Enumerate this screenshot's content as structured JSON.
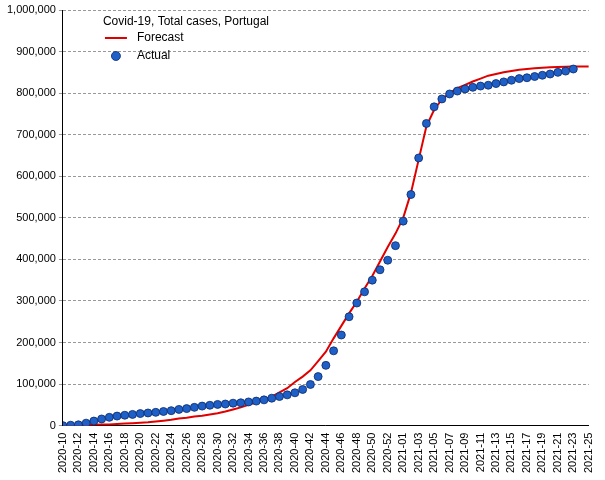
{
  "chart_data": {
    "type": "line",
    "title": "Covid-19, Total cases, Portugal",
    "categories": [
      "2020-10",
      null,
      "2020-12",
      null,
      "2020-14",
      null,
      "2020-16",
      null,
      "2020-18",
      null,
      "2020-20",
      null,
      "2020-22",
      null,
      "2020-24",
      null,
      "2020-26",
      null,
      "2020-28",
      null,
      "2020-30",
      null,
      "2020-32",
      null,
      "2020-34",
      null,
      "2020-36",
      null,
      "2020-38",
      null,
      "2020-40",
      null,
      "2020-42",
      null,
      "2020-44",
      null,
      "2020-46",
      null,
      "2020-48",
      null,
      "2020-50",
      null,
      "2020-52",
      null,
      "2021-01",
      null,
      "2021-03",
      null,
      "2021-05",
      null,
      "2021-07",
      null,
      "2021-09",
      null,
      "2021-11",
      null,
      "2021-13",
      null,
      "2021-15",
      null,
      "2021-17",
      null,
      "2021-19",
      null,
      "2021-21",
      null,
      "2021-23",
      null,
      "2021-25"
    ],
    "series": [
      {
        "name": "Forecast",
        "type": "line",
        "color": "#e00000",
        "marker": "none",
        "line_style": "solid",
        "values": [
          0,
          500,
          1000,
          1500,
          2000,
          2500,
          3000,
          4000,
          5000,
          6000,
          7000,
          8000,
          10000,
          12000,
          14000,
          17000,
          19000,
          22000,
          24000,
          27000,
          30000,
          34000,
          39000,
          44000,
          50000,
          56000,
          62000,
          70000,
          80000,
          90000,
          105000,
          118000,
          133000,
          155000,
          178000,
          210000,
          240000,
          270000,
          298000,
          330000,
          360000,
          395000,
          430000,
          462000,
          500000,
          560000,
          640000,
          720000,
          760000,
          785000,
          800000,
          812000,
          820000,
          828000,
          835000,
          842000,
          846000,
          850000,
          853000,
          856000,
          858000,
          860000,
          861000,
          862000,
          863000,
          863500,
          864000,
          864000,
          864000
        ]
      },
      {
        "name": "Actual",
        "type": "scatter",
        "color": "#1f5fc8",
        "marker": "circle",
        "values": [
          0,
          1000,
          2000,
          6000,
          11000,
          16000,
          20000,
          23000,
          25000,
          27000,
          29000,
          30500,
          32000,
          34000,
          36000,
          39000,
          41000,
          44000,
          47000,
          49000,
          51000,
          52000,
          54000,
          55000,
          57000,
          59000,
          62000,
          66000,
          70000,
          74000,
          79000,
          87000,
          99000,
          118000,
          145000,
          180000,
          218000,
          262000,
          295000,
          322000,
          350000,
          375000,
          398000,
          433000,
          492000,
          556000,
          644000,
          727000,
          767000,
          786000,
          798000,
          805000,
          810000,
          814000,
          817000,
          819000,
          823000,
          827000,
          831000,
          835000,
          837000,
          840000,
          843000,
          846000,
          850000,
          853000,
          858000,
          null,
          null
        ]
      }
    ],
    "ylim": [
      0,
      1000000
    ],
    "yticks": [
      0,
      {
        "value": 100000,
        "label": "100,000"
      },
      {
        "value": 200000,
        "label": "200,000"
      },
      {
        "value": 300000,
        "label": "300,000"
      },
      {
        "value": 400000,
        "label": "400,000"
      },
      {
        "value": 500000,
        "label": "500,000"
      },
      {
        "value": 600000,
        "label": "600,000"
      },
      {
        "value": 700000,
        "label": "700,000"
      },
      {
        "value": 800000,
        "label": "800,000"
      },
      {
        "value": 900000,
        "label": "900,000"
      },
      {
        "value": 1000000,
        "label": "1,000,000"
      }
    ],
    "grid": "y",
    "legend": "top-left"
  }
}
